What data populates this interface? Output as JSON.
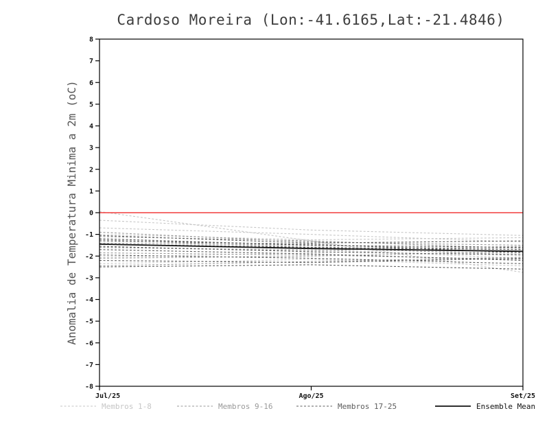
{
  "chart_data": {
    "type": "line",
    "title": "Cardoso Moreira (Lon:-41.6165,Lat:-21.4846)",
    "ylabel": "Anomalia de Temperatura Minima a 2m (oC)",
    "xlabel": "",
    "ylim": [
      -8,
      8
    ],
    "ytick_step": 1,
    "grid": false,
    "x": [
      0,
      0.5,
      1
    ],
    "x_categories": [
      "Jul/25",
      "Ago/25",
      "Set/25"
    ],
    "zero_line": {
      "value": 0,
      "color": "#f23c3c"
    },
    "frame_color": "#000000",
    "legend_position": "bottom",
    "groups": [
      {
        "name": "Membros 1-8",
        "color": "#c6c6c6",
        "style": "dashed"
      },
      {
        "name": "Membros 9-16",
        "color": "#999999",
        "style": "dashed"
      },
      {
        "name": "Membros 17-25",
        "color": "#5c5c5c",
        "style": "dashed"
      },
      {
        "name": "Ensemble Mean",
        "color": "#111111",
        "style": "solid"
      }
    ],
    "series": [
      {
        "name": "member-1",
        "group": 0,
        "values": [
          0.05,
          -1.3,
          -2.75
        ]
      },
      {
        "name": "member-2",
        "group": 0,
        "values": [
          -0.35,
          -0.8,
          -1.05
        ]
      },
      {
        "name": "member-3",
        "group": 0,
        "values": [
          -0.7,
          -1.0,
          -1.35
        ]
      },
      {
        "name": "member-4",
        "group": 0,
        "values": [
          -1.0,
          -1.25,
          -1.15
        ]
      },
      {
        "name": "member-5",
        "group": 0,
        "values": [
          -1.2,
          -1.55,
          -1.9
        ]
      },
      {
        "name": "member-6",
        "group": 0,
        "values": [
          -1.6,
          -1.7,
          -2.1
        ]
      },
      {
        "name": "member-7",
        "group": 0,
        "values": [
          -2.05,
          -1.85,
          -1.6
        ]
      },
      {
        "name": "member-8",
        "group": 0,
        "values": [
          -2.35,
          -2.15,
          -2.45
        ]
      },
      {
        "name": "member-9",
        "group": 1,
        "values": [
          -0.9,
          -1.35,
          -1.5
        ]
      },
      {
        "name": "member-10",
        "group": 1,
        "values": [
          -1.1,
          -1.3,
          -1.65
        ]
      },
      {
        "name": "member-11",
        "group": 1,
        "values": [
          -1.25,
          -1.6,
          -1.95
        ]
      },
      {
        "name": "member-12",
        "group": 1,
        "values": [
          -1.4,
          -1.5,
          -1.7
        ]
      },
      {
        "name": "member-13",
        "group": 1,
        "values": [
          -1.6,
          -1.75,
          -1.55
        ]
      },
      {
        "name": "member-14",
        "group": 1,
        "values": [
          -1.85,
          -1.95,
          -2.15
        ]
      },
      {
        "name": "member-15",
        "group": 1,
        "values": [
          -2.1,
          -2.0,
          -1.8
        ]
      },
      {
        "name": "member-16",
        "group": 1,
        "values": [
          -2.45,
          -2.25,
          -2.05
        ]
      },
      {
        "name": "member-17",
        "group": 2,
        "values": [
          -1.05,
          -1.4,
          -1.3
        ]
      },
      {
        "name": "member-18",
        "group": 2,
        "values": [
          -1.2,
          -1.5,
          -1.6
        ]
      },
      {
        "name": "member-19",
        "group": 2,
        "values": [
          -1.3,
          -1.45,
          -1.85
        ]
      },
      {
        "name": "member-20",
        "group": 2,
        "values": [
          -1.45,
          -1.6,
          -1.7
        ]
      },
      {
        "name": "member-21",
        "group": 2,
        "values": [
          -1.55,
          -1.8,
          -1.95
        ]
      },
      {
        "name": "member-22",
        "group": 2,
        "values": [
          -1.7,
          -1.9,
          -2.2
        ]
      },
      {
        "name": "member-23",
        "group": 2,
        "values": [
          -1.95,
          -2.1,
          -2.35
        ]
      },
      {
        "name": "member-24",
        "group": 2,
        "values": [
          -2.2,
          -2.3,
          -2.1
        ]
      },
      {
        "name": "member-25",
        "group": 2,
        "values": [
          -2.5,
          -2.4,
          -2.6
        ]
      },
      {
        "name": "ensemble-mean",
        "group": 3,
        "values": [
          -1.45,
          -1.65,
          -1.78
        ]
      }
    ]
  }
}
